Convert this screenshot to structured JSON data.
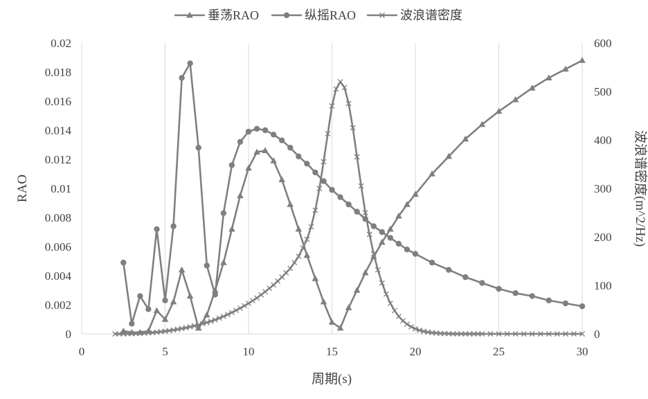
{
  "chart_data": {
    "type": "line",
    "xlabel": "周期(s)",
    "ylabel": "RAO",
    "y2label": "波浪谱密度(m^2/Hz)",
    "xlim": [
      0,
      30
    ],
    "ylim": [
      0,
      0.02
    ],
    "y2lim": [
      0,
      600
    ],
    "x_ticks": [
      0,
      5,
      10,
      15,
      20,
      25,
      30
    ],
    "x_tick_labels": [
      "0",
      "5",
      "10",
      "15",
      "20",
      "25",
      "30"
    ],
    "y_ticks": [
      0,
      0.002,
      0.004,
      0.006,
      0.008,
      0.01,
      0.012,
      0.014,
      0.016,
      0.018,
      0.02
    ],
    "y_tick_labels": [
      "0",
      "0.002",
      "0.004",
      "0.006",
      "0.008",
      "0.01",
      "0.012",
      "0.014",
      "0.016",
      "0.018",
      "0.02"
    ],
    "y2_ticks": [
      0,
      100,
      200,
      300,
      400,
      500,
      600
    ],
    "y2_tick_labels": [
      "0",
      "100",
      "200",
      "300",
      "400",
      "500",
      "600"
    ],
    "grid": "vertical",
    "legend_position": "top",
    "colors": {
      "line": "#7f7f7f",
      "grid": "#d9d9d9",
      "text": "#404040"
    },
    "series": [
      {
        "name": "垂荡RAO",
        "axis": "left",
        "marker": "triangle",
        "x": [
          2.5,
          3.0,
          3.5,
          4.0,
          4.5,
          5.0,
          5.5,
          6.0,
          6.5,
          7.0,
          7.5,
          8.0,
          8.5,
          9.0,
          9.5,
          10.0,
          10.5,
          11.0,
          11.5,
          12.0,
          12.5,
          13.0,
          13.5,
          14.0,
          14.5,
          15.0,
          15.5,
          16.0,
          16.5,
          17.0,
          17.5,
          18.0,
          18.5,
          19.0,
          19.5,
          20.0,
          21.0,
          22.0,
          23.0,
          24.0,
          25.0,
          26.0,
          27.0,
          28.0,
          29.0,
          30.0
        ],
        "y": [
          0.0002,
          0.0001,
          0.0001,
          0.0002,
          0.0016,
          0.001,
          0.0022,
          0.0044,
          0.0026,
          0.0004,
          0.0013,
          0.003,
          0.0049,
          0.0072,
          0.0095,
          0.0114,
          0.0125,
          0.0126,
          0.0119,
          0.0106,
          0.0089,
          0.0072,
          0.0054,
          0.0038,
          0.0022,
          0.0008,
          0.0004,
          0.0018,
          0.003,
          0.0042,
          0.0053,
          0.0063,
          0.0072,
          0.0081,
          0.0089,
          0.0096,
          0.011,
          0.0122,
          0.0134,
          0.0144,
          0.0153,
          0.0161,
          0.0169,
          0.0176,
          0.0182,
          0.0188
        ]
      },
      {
        "name": "纵摇RAO",
        "axis": "left",
        "marker": "circle",
        "x": [
          2.5,
          3.0,
          3.5,
          4.0,
          4.5,
          5.0,
          5.5,
          6.0,
          6.5,
          7.0,
          7.5,
          8.0,
          8.5,
          9.0,
          9.5,
          10.0,
          10.5,
          11.0,
          11.5,
          12.0,
          12.5,
          13.0,
          13.5,
          14.0,
          14.5,
          15.0,
          15.5,
          16.0,
          16.5,
          17.0,
          17.5,
          18.0,
          18.5,
          19.0,
          19.5,
          20.0,
          21.0,
          22.0,
          23.0,
          24.0,
          25.0,
          26.0,
          27.0,
          28.0,
          29.0,
          30.0
        ],
        "y": [
          0.0049,
          0.0007,
          0.0026,
          0.0017,
          0.0072,
          0.0023,
          0.0074,
          0.0176,
          0.0186,
          0.0128,
          0.0047,
          0.0027,
          0.0083,
          0.0116,
          0.0132,
          0.0139,
          0.0141,
          0.014,
          0.0137,
          0.0133,
          0.0128,
          0.0122,
          0.0117,
          0.0111,
          0.0105,
          0.0099,
          0.0094,
          0.0089,
          0.0084,
          0.0079,
          0.0074,
          0.007,
          0.0066,
          0.0062,
          0.0058,
          0.0055,
          0.0049,
          0.0044,
          0.0039,
          0.0035,
          0.0031,
          0.0028,
          0.0026,
          0.0023,
          0.0021,
          0.0019
        ]
      },
      {
        "name": "波浪谱密度",
        "axis": "right",
        "marker": "x",
        "x": [
          2.0,
          2.25,
          2.5,
          2.75,
          3.0,
          3.25,
          3.5,
          3.75,
          4.0,
          4.25,
          4.5,
          4.75,
          5.0,
          5.25,
          5.5,
          5.75,
          6.0,
          6.25,
          6.5,
          6.75,
          7.0,
          7.25,
          7.5,
          7.75,
          8.0,
          8.25,
          8.5,
          8.75,
          9.0,
          9.25,
          9.5,
          9.75,
          10.0,
          10.25,
          10.5,
          10.75,
          11.0,
          11.25,
          11.5,
          11.75,
          12.0,
          12.25,
          12.5,
          12.75,
          13.0,
          13.25,
          13.5,
          13.75,
          14.0,
          14.25,
          14.5,
          14.75,
          15.0,
          15.25,
          15.5,
          15.75,
          16.0,
          16.25,
          16.5,
          16.75,
          17.0,
          17.25,
          17.5,
          17.75,
          18.0,
          18.25,
          18.5,
          18.75,
          19.0,
          19.25,
          19.5,
          19.75,
          20.0,
          20.25,
          20.5,
          20.75,
          21.0,
          21.25,
          21.5,
          21.75,
          22.0,
          22.25,
          22.5,
          22.75,
          23.0,
          23.25,
          23.5,
          23.75,
          24.0,
          24.5,
          25.0,
          25.5,
          26.0,
          26.5,
          27.0,
          27.5,
          28.0,
          28.5,
          29.0,
          29.5,
          30.0
        ],
        "y": [
          0,
          0,
          0,
          0.2,
          0.4,
          0.6,
          1,
          1.5,
          2,
          2.7,
          3.5,
          4.5,
          5.5,
          6.7,
          8,
          9.5,
          11,
          12.7,
          14.5,
          16.5,
          18.5,
          21,
          23.5,
          26.2,
          29,
          32.5,
          36,
          40,
          44,
          48.5,
          53,
          58,
          63,
          68.5,
          74,
          80.5,
          87,
          94,
          101,
          109,
          117,
          126,
          135,
          147,
          160,
          177,
          195,
          221,
          255,
          300,
          355,
          413,
          470,
          505,
          520,
          508,
          475,
          425,
          365,
          305,
          250,
          205,
          165,
          132,
          105,
          82,
          63,
          48,
          36,
          27,
          20,
          14.5,
          10.5,
          7.5,
          5.2,
          3.6,
          2.5,
          1.7,
          1.1,
          0.7,
          0.4,
          0.2,
          0.1,
          0.05,
          0,
          0,
          0,
          0,
          0,
          0,
          0,
          0,
          0,
          0,
          0,
          0,
          0,
          0,
          0,
          0,
          0
        ]
      }
    ]
  }
}
